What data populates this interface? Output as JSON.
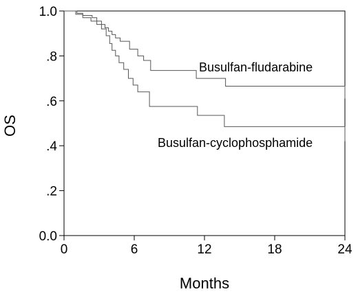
{
  "chart_data": {
    "type": "line",
    "step": true,
    "xlabel": "Months",
    "ylabel": "OS",
    "xlim": [
      0,
      24
    ],
    "ylim": [
      0,
      1
    ],
    "xticks": [
      0,
      6,
      12,
      18,
      24
    ],
    "xtick_labels": [
      "0",
      "6",
      "12",
      "18",
      "24"
    ],
    "yticks": [
      0,
      0.2,
      0.4,
      0.6,
      0.8,
      1.0
    ],
    "ytick_labels": [
      "0.0",
      ".2",
      ".4",
      ".6",
      ".8",
      "1.0"
    ],
    "grid": false,
    "series": [
      {
        "name": "Busulfan-fludarabine",
        "x": [
          0,
          1.1,
          1.6,
          2.4,
          2.8,
          3.2,
          3.5,
          3.8,
          4.1,
          4.4,
          4.8,
          5.6,
          6.3,
          6.8,
          7.4,
          11.3,
          13.8,
          24.0,
          24.0
        ],
        "y": [
          1.0,
          0.99,
          0.98,
          0.97,
          0.955,
          0.94,
          0.925,
          0.91,
          0.895,
          0.88,
          0.865,
          0.83,
          0.8,
          0.78,
          0.735,
          0.7,
          0.665,
          0.665,
          0.61
        ]
      },
      {
        "name": "Busulfan-cyclophosphamide",
        "x": [
          0,
          1.0,
          1.6,
          2.3,
          2.8,
          3.2,
          3.6,
          3.9,
          4.1,
          4.4,
          4.7,
          5.1,
          5.5,
          5.9,
          6.3,
          7.3,
          11.4,
          13.7,
          24.0,
          24.0
        ],
        "y": [
          1.0,
          0.985,
          0.97,
          0.955,
          0.94,
          0.92,
          0.89,
          0.855,
          0.825,
          0.8,
          0.77,
          0.74,
          0.7,
          0.67,
          0.64,
          0.575,
          0.535,
          0.485,
          0.485,
          0.42
        ]
      }
    ]
  }
}
